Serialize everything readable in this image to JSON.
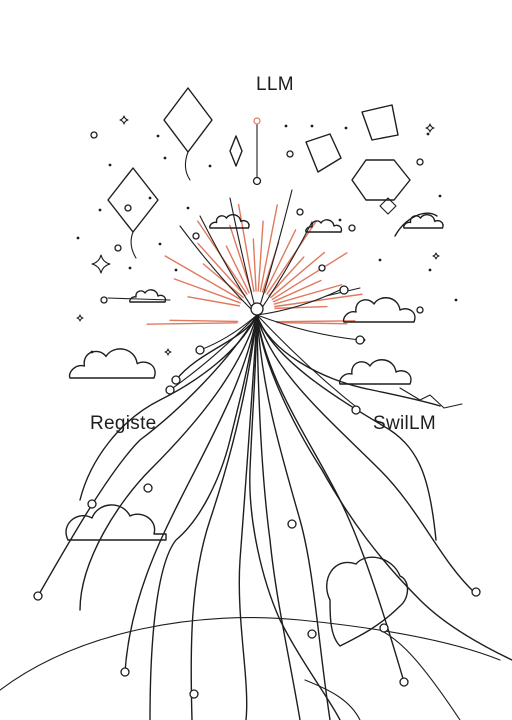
{
  "labels": {
    "top": "LLM",
    "left": "Registe",
    "right": "SwilLM"
  },
  "colors": {
    "ink": "#1e1e1e",
    "rays": "#e07a5f",
    "background": "#ffffff"
  }
}
